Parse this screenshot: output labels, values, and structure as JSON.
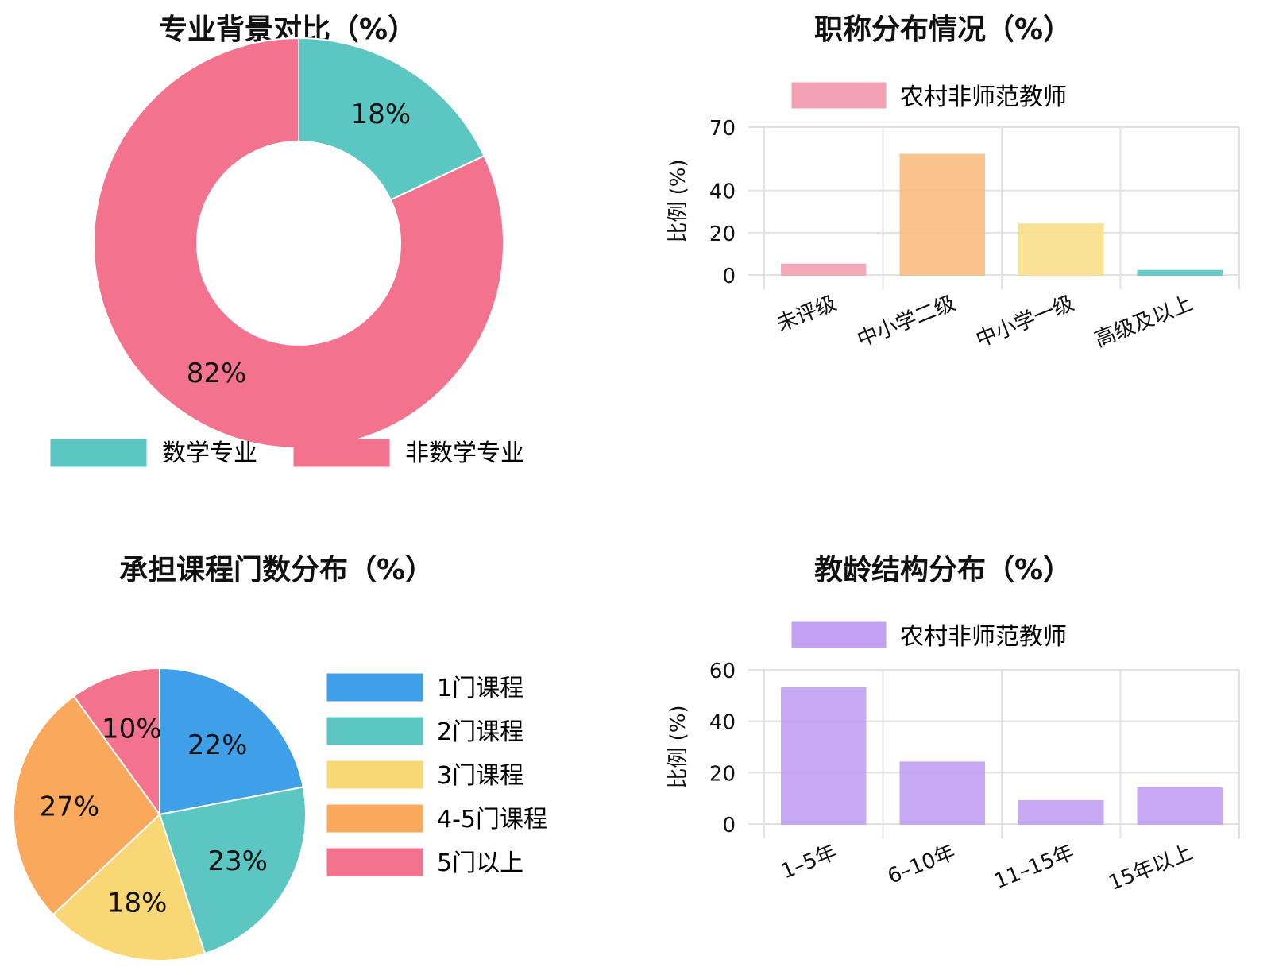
{
  "chart_data": [
    {
      "type": "pie",
      "subtype": "donut",
      "title": "专业背景对比（%）",
      "categories": [
        "数学专业",
        "非数学专业"
      ],
      "values": [
        18,
        82
      ],
      "labels": [
        "18%",
        "82%"
      ],
      "colors": [
        "#5cc6c2",
        "#f3728e"
      ],
      "legend_position": "bottom"
    },
    {
      "type": "bar",
      "title": "职称分布情况（%）",
      "categories": [
        "未评级",
        "中小学二级",
        "中小学一级",
        "高级及以上"
      ],
      "series": [
        {
          "name": "农村非师范教师",
          "values": [
            5,
            57,
            24,
            2
          ]
        }
      ],
      "colors": [
        "#f2a2b2",
        "#f9bd82",
        "#f9de8a",
        "#5cc6c2"
      ],
      "legend_color": "#f2a2b2",
      "ylabel": "比例 (%)",
      "yticks": [
        "0",
        "20",
        "40",
        "70"
      ],
      "ylim": [
        0,
        70
      ],
      "grid": true,
      "legend_position": "top"
    },
    {
      "type": "pie",
      "title": "承担课程门数分布（%）",
      "categories": [
        "1门课程",
        "2门课程",
        "3门课程",
        "4-5门课程",
        "5门以上"
      ],
      "values": [
        22,
        23,
        18,
        27,
        10
      ],
      "labels": [
        "22%",
        "23%",
        "18%",
        "27%",
        "10%"
      ],
      "colors": [
        "#3f9fe8",
        "#5cc6c2",
        "#f9d774",
        "#f9a85c",
        "#f3728e"
      ],
      "legend_position": "right"
    },
    {
      "type": "bar",
      "title": "教龄结构分布（%）",
      "categories": [
        "1–5年",
        "6–10年",
        "11–15年",
        "15年以上"
      ],
      "series": [
        {
          "name": "农村非师范教师",
          "values": [
            53,
            24,
            9,
            14
          ]
        }
      ],
      "colors": [
        "#c3a0f2",
        "#c3a0f2",
        "#c3a0f2",
        "#c3a0f2"
      ],
      "legend_color": "#c3a0f2",
      "ylabel": "比例 (%)",
      "yticks": [
        "0",
        "20",
        "40",
        "60"
      ],
      "ylim": [
        0,
        60
      ],
      "grid": true,
      "legend_position": "top"
    }
  ]
}
